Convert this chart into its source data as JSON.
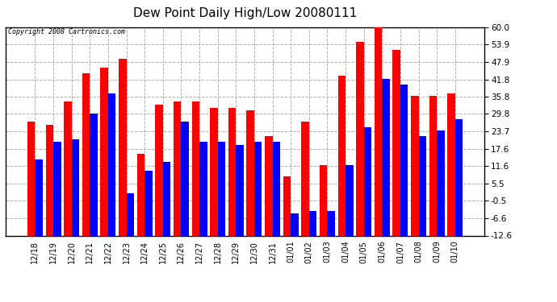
{
  "title": "Dew Point Daily High/Low 20080111",
  "copyright": "Copyright 2008 Cartronics.com",
  "dates": [
    "12/18",
    "12/19",
    "12/20",
    "12/21",
    "12/22",
    "12/23",
    "12/24",
    "12/25",
    "12/26",
    "12/27",
    "12/28",
    "12/29",
    "12/30",
    "12/31",
    "01/01",
    "01/02",
    "01/03",
    "01/04",
    "01/05",
    "01/06",
    "01/07",
    "01/08",
    "01/09",
    "01/10"
  ],
  "highs": [
    27,
    26,
    34,
    44,
    46,
    49,
    16,
    33,
    34,
    34,
    32,
    32,
    31,
    22,
    8,
    27,
    12,
    43,
    55,
    61,
    52,
    36,
    36,
    37
  ],
  "lows": [
    14,
    20,
    21,
    30,
    37,
    2,
    10,
    13,
    27,
    20,
    20,
    19,
    20,
    20,
    -5,
    -4,
    -4,
    12,
    25,
    42,
    40,
    22,
    24,
    28
  ],
  "high_color": "#ff0000",
  "low_color": "#0000ff",
  "bg_color": "#ffffff",
  "plot_bg_color": "#ffffff",
  "grid_color": "#b0b0b0",
  "yticks": [
    60.0,
    53.9,
    47.9,
    41.8,
    35.8,
    29.8,
    23.7,
    17.6,
    11.6,
    5.5,
    -0.5,
    -6.6,
    -12.6
  ],
  "ylim_min": -12.6,
  "ylim_max": 60.0,
  "bar_width": 0.42
}
